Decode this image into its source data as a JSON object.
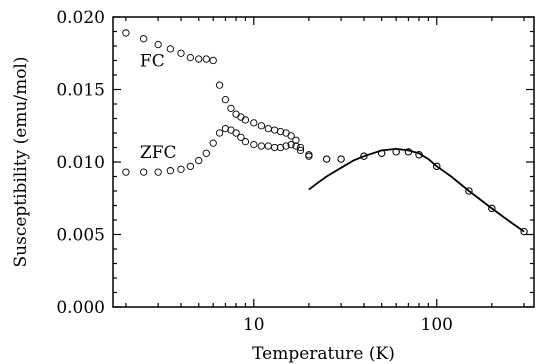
{
  "chart_data": {
    "type": "scatter",
    "xlabel": "Temperature (K)",
    "ylabel": "Susceptibility (emu/mol)",
    "xscale": "log",
    "xlim": [
      1.7,
      340
    ],
    "ylim": [
      0.0,
      0.02
    ],
    "grid": false,
    "x_tick_labels": [
      "10",
      "100"
    ],
    "x_ticks": [
      10,
      100
    ],
    "y_tick_labels": [
      "0.000",
      "0.005",
      "0.010",
      "0.015",
      "0.020"
    ],
    "y_ticks": [
      0.0,
      0.005,
      0.01,
      0.015,
      0.02
    ],
    "annotations": [
      {
        "text": "FC",
        "x": 2.0,
        "y": 0.017
      },
      {
        "text": "ZFC",
        "x": 2.0,
        "y": 0.0107
      }
    ],
    "series": [
      {
        "name": "FC",
        "marker": "open-circle",
        "x": [
          2.0,
          2.5,
          3.0,
          3.5,
          4.0,
          4.5,
          5.0,
          5.5,
          6.0,
          6.5,
          7.0,
          7.5,
          8.0,
          8.5,
          9.0,
          10,
          11,
          12,
          13,
          14,
          15,
          16,
          17,
          18,
          20,
          25,
          30,
          40,
          50,
          60,
          70,
          80,
          100,
          150,
          200,
          300
        ],
        "y": [
          0.0189,
          0.0185,
          0.0181,
          0.0178,
          0.0175,
          0.0172,
          0.0171,
          0.0171,
          0.017,
          0.0153,
          0.0143,
          0.0137,
          0.0133,
          0.0131,
          0.0129,
          0.0127,
          0.0125,
          0.0123,
          0.0122,
          0.0121,
          0.012,
          0.0118,
          0.0115,
          0.011,
          0.0105,
          0.0102,
          0.0102,
          0.0104,
          0.0106,
          0.0107,
          0.0107,
          0.0105,
          0.0097,
          0.008,
          0.0068,
          0.0052
        ]
      },
      {
        "name": "ZFC",
        "marker": "open-circle",
        "x": [
          2.0,
          2.5,
          3.0,
          3.5,
          4.0,
          4.5,
          5.0,
          5.5,
          6.0,
          6.5,
          7.0,
          7.5,
          8.0,
          8.5,
          9.0,
          10,
          11,
          12,
          13,
          14,
          15,
          16,
          17,
          18,
          20,
          25,
          30,
          40,
          50,
          60,
          70,
          80,
          100,
          150,
          200,
          300
        ],
        "y": [
          0.0093,
          0.0093,
          0.0093,
          0.0094,
          0.0095,
          0.0097,
          0.0101,
          0.0106,
          0.0113,
          0.012,
          0.0123,
          0.0122,
          0.012,
          0.0117,
          0.0114,
          0.0112,
          0.0111,
          0.0111,
          0.011,
          0.011,
          0.0111,
          0.0112,
          0.0111,
          0.0108,
          0.0104,
          0.0102,
          0.0102,
          0.0104,
          0.0106,
          0.0107,
          0.0107,
          0.0105,
          0.0097,
          0.008,
          0.0068,
          0.0052
        ]
      },
      {
        "name": "",
        "marker": "line",
        "x": [
          20,
          22,
          25,
          30,
          35,
          40,
          50,
          60,
          70,
          80,
          90,
          100,
          120,
          150,
          200,
          250,
          300
        ],
        "y": [
          0.0081,
          0.0085,
          0.009,
          0.0096,
          0.0101,
          0.0104,
          0.0108,
          0.0109,
          0.0108,
          0.0106,
          0.0102,
          0.0097,
          0.009,
          0.008,
          0.0068,
          0.0059,
          0.0052
        ]
      }
    ]
  }
}
